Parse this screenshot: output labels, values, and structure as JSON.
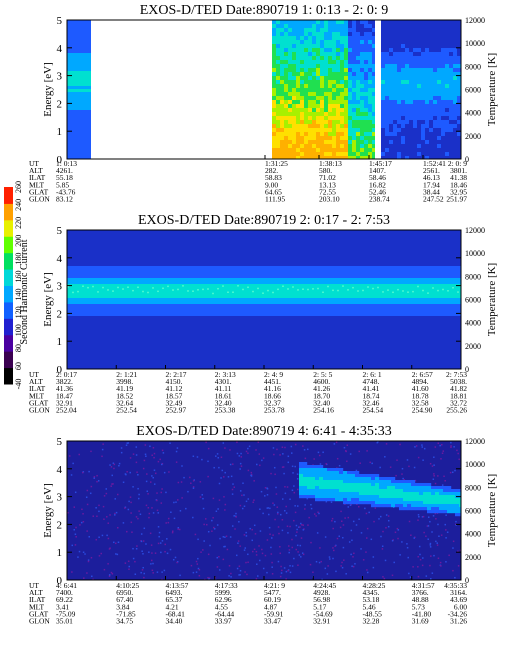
{
  "colorbar": {
    "label": "Second Harmonic Current",
    "ticks": [
      "-40",
      "60",
      "80",
      "100",
      "120",
      "140",
      "160",
      "180",
      "200",
      "220",
      "240",
      "260"
    ]
  },
  "panels": [
    {
      "title": "EXOS-D/TED   Date:890719  1: 0:13 - 2: 0: 9",
      "ylabel_left": "Energy [eV]",
      "ylabel_right": "Temperature [K]",
      "row_labels": [
        "UT",
        "ALT",
        "ILAT",
        "MLT",
        "GLAT",
        "GLON"
      ],
      "columns": [
        {
          "ut": "1: 0:13",
          "alt": "4261.",
          "ilat": "55.18",
          "mlt": "5.85",
          "glat": "-43.76",
          "glon": "83.12"
        },
        {
          "ut": "1:31:25",
          "alt": "282.",
          "ilat": "58.83",
          "mlt": "9.00",
          "glat": "64.65",
          "glon": "111.95"
        },
        {
          "ut": "1:38:13",
          "alt": "580.",
          "ilat": "71.02",
          "mlt": "13.13",
          "glat": "72.55",
          "glon": "203.10"
        },
        {
          "ut": "1:45:17",
          "alt": "1407.",
          "ilat": "58.46",
          "mlt": "16.82",
          "glat": "52.46",
          "glon": "238.74"
        },
        {
          "ut": "1:52:41",
          "alt": "2561.",
          "ilat": "46.13",
          "mlt": "17.94",
          "glat": "38.44",
          "glon": "247.52"
        },
        {
          "ut": "2: 0: 9",
          "alt": "3801.",
          "ilat": "41.38",
          "mlt": "18.46",
          "glat": "32.95",
          "glon": "251.97"
        }
      ]
    },
    {
      "title": "EXOS-D/TED   Date:890719  2: 0:17 - 2: 7:53",
      "ylabel_left": "Energy [eV]",
      "ylabel_right": "Temperature [K]",
      "row_labels": [
        "UT",
        "ALT",
        "ILAT",
        "MLT",
        "GLAT",
        "GLON"
      ],
      "columns": [
        {
          "ut": "2: 0:17",
          "alt": "3822.",
          "ilat": "41.36",
          "mlt": "18.47",
          "glat": "32.91",
          "glon": "252.04"
        },
        {
          "ut": "2: 1:21",
          "alt": "3998.",
          "ilat": "41.19",
          "mlt": "18.52",
          "glat": "32.64",
          "glon": "252.54"
        },
        {
          "ut": "2: 2:17",
          "alt": "4150.",
          "ilat": "41.12",
          "mlt": "18.57",
          "glat": "32.49",
          "glon": "252.97"
        },
        {
          "ut": "2: 3:13",
          "alt": "4301.",
          "ilat": "41.11",
          "mlt": "18.61",
          "glat": "32.40",
          "glon": "253.38"
        },
        {
          "ut": "2: 4: 9",
          "alt": "4451.",
          "ilat": "41.16",
          "mlt": "18.66",
          "glat": "32.37",
          "glon": "253.78"
        },
        {
          "ut": "2: 5: 5",
          "alt": "4600.",
          "ilat": "41.26",
          "mlt": "18.70",
          "glat": "32.40",
          "glon": "254.16"
        },
        {
          "ut": "2: 6: 1",
          "alt": "4748.",
          "ilat": "41.41",
          "mlt": "18.74",
          "glat": "32.46",
          "glon": "254.54"
        },
        {
          "ut": "2: 6:57",
          "alt": "4894.",
          "ilat": "41.60",
          "mlt": "18.78",
          "glat": "32.58",
          "glon": "254.90"
        },
        {
          "ut": "2: 7:53",
          "alt": "5038.",
          "ilat": "41.82",
          "mlt": "18.81",
          "glat": "32.72",
          "glon": "255.26"
        }
      ]
    },
    {
      "title": "EXOS-D/TED   Date:890719  4: 6:41 - 4:35:33",
      "ylabel_left": "Energy [eV]",
      "ylabel_right": "Temperature [K]",
      "row_labels": [
        "UT",
        "ALT",
        "ILAT",
        "MLT",
        "GLAT",
        "GLON"
      ],
      "columns": [
        {
          "ut": "4: 6:41",
          "alt": "7400.",
          "ilat": "69.22",
          "mlt": "3.41",
          "glat": "-75.09",
          "glon": "35.01"
        },
        {
          "ut": "4:10:25",
          "alt": "6950.",
          "ilat": "67.40",
          "mlt": "3.84",
          "glat": "-71.85",
          "glon": "34.75"
        },
        {
          "ut": "4:13:57",
          "alt": "6493.",
          "ilat": "65.37",
          "mlt": "4.21",
          "glat": "-68.41",
          "glon": "34.40"
        },
        {
          "ut": "4:17:33",
          "alt": "5999.",
          "ilat": "62.96",
          "mlt": "4.55",
          "glat": "-64.44",
          "glon": "33.97"
        },
        {
          "ut": "4:21: 9",
          "alt": "5477.",
          "ilat": "60.19",
          "mlt": "4.87",
          "glat": "-59.91",
          "glon": "33.47"
        },
        {
          "ut": "4:24:45",
          "alt": "4928.",
          "ilat": "56.98",
          "mlt": "5.17",
          "glat": "-54.69",
          "glon": "32.91"
        },
        {
          "ut": "4:28:25",
          "alt": "4345.",
          "ilat": "53.18",
          "mlt": "5.46",
          "glat": "-48.55",
          "glon": "32.28"
        },
        {
          "ut": "4:31:57",
          "alt": "3766.",
          "ilat": "48.88",
          "mlt": "5.73",
          "glat": "-41.80",
          "glon": "31.69"
        },
        {
          "ut": "4:35:33",
          "alt": "3164.",
          "ilat": "43.69",
          "mlt": "6.00",
          "glat": "-34.26",
          "glon": "31.26"
        }
      ]
    }
  ],
  "chart_data": [
    {
      "type": "heatmap",
      "title": "EXOS-D/TED   Date:890719  1: 0:13 - 2: 0: 9",
      "ylabel": "Energy [eV]",
      "y2label": "Temperature [K]",
      "ylim": [
        0,
        5
      ],
      "y2lim": [
        0,
        12000
      ],
      "yticks": [
        "0",
        "1",
        "2",
        "3",
        "4",
        "5"
      ],
      "y2ticks": [
        "0",
        "2000",
        "4000",
        "6000",
        "8000",
        "10000",
        "12000"
      ],
      "x_start": "1: 0:13",
      "x_end": "2: 0: 9",
      "data_gaps": [
        "1: 2:00 - 1:31:25"
      ]
    },
    {
      "type": "heatmap",
      "title": "EXOS-D/TED   Date:890719  2: 0:17 - 2: 7:53",
      "ylabel": "Energy [eV]",
      "y2label": "Temperature [K]",
      "ylim": [
        0,
        5
      ],
      "y2lim": [
        0,
        12000
      ],
      "yticks": [
        "0",
        "1",
        "2",
        "3",
        "4",
        "5"
      ],
      "y2ticks": [
        "0",
        "2000",
        "4000",
        "6000",
        "8000",
        "10000",
        "12000"
      ],
      "x_start": "2: 0:17",
      "x_end": "2: 7:53"
    },
    {
      "type": "heatmap",
      "title": "EXOS-D/TED   Date:890719  4: 6:41 - 4:35:33",
      "ylabel": "Energy [eV]",
      "y2label": "Temperature [K]",
      "ylim": [
        0,
        5
      ],
      "y2lim": [
        0,
        12000
      ],
      "yticks": [
        "0",
        "1",
        "2",
        "3",
        "4",
        "5"
      ],
      "y2ticks": [
        "0",
        "2000",
        "4000",
        "6000",
        "8000",
        "10000",
        "12000"
      ],
      "x_start": "4: 6:41",
      "x_end": "4:35:33"
    }
  ]
}
